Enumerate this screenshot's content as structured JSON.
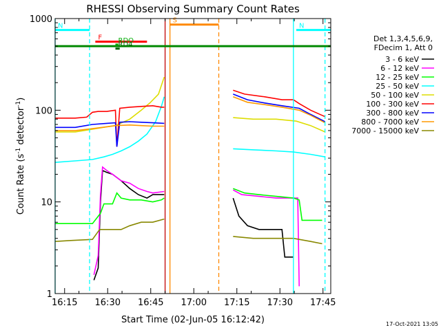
{
  "chart_data": {
    "type": "line",
    "title": "RHESSI Observing Summary Count Rates",
    "xlabel": "Start Time (02-Jun-05 16:12:42)",
    "ylabel_main": "Count Rate (s",
    "ylabel_sup1": "-1",
    "ylabel_mid": " detector",
    "ylabel_sup2": "-1",
    "ylabel_end": ")",
    "y_scale": "log",
    "ylim": [
      1,
      1000
    ],
    "xlim_minutes": [
      -1,
      95
    ],
    "x_ticks": [
      {
        "t": 2.3,
        "label": "16:15"
      },
      {
        "t": 17.3,
        "label": "16:30"
      },
      {
        "t": 32.3,
        "label": "16:45"
      },
      {
        "t": 47.3,
        "label": "17:00"
      },
      {
        "t": 62.3,
        "label": "17:15"
      },
      {
        "t": 77.3,
        "label": "17:30"
      },
      {
        "t": 92.3,
        "label": "17:45"
      }
    ],
    "y_ticks": [
      {
        "v": 1,
        "label": "1"
      },
      {
        "v": 10,
        "label": "10"
      },
      {
        "v": 100,
        "label": "100"
      },
      {
        "v": 1000,
        "label": "1000"
      }
    ],
    "grid": false,
    "legend_position": "right",
    "legend_header": [
      "Det 1,3,4,5,6,9,",
      "FDecim 1, Att 0"
    ],
    "footer_date": "17-Oct-2021 13:05",
    "series": [
      {
        "name": "3 - 6 keV",
        "color": "#000000",
        "points": [
          [
            -1,
            null
          ],
          [
            12,
            null
          ],
          [
            12.5,
            1.4
          ],
          [
            14,
            1.9
          ],
          [
            14.8,
            10
          ],
          [
            15.5,
            22
          ],
          [
            17,
            21
          ],
          [
            19,
            20
          ],
          [
            22,
            17
          ],
          [
            25,
            14
          ],
          [
            28,
            12
          ],
          [
            31,
            11
          ],
          [
            33,
            12
          ],
          [
            37,
            12
          ],
          [
            37.5,
            null
          ],
          [
            60.5,
            null
          ],
          [
            61,
            11
          ],
          [
            63,
            7
          ],
          [
            66,
            5.5
          ],
          [
            70,
            5
          ],
          [
            74,
            5
          ],
          [
            78,
            5
          ],
          [
            79,
            2.5
          ],
          [
            82,
            2.5
          ],
          [
            82.5,
            null
          ],
          [
            95,
            null
          ]
        ]
      },
      {
        "name": "6 - 12 keV",
        "color": "#ff00ff",
        "points": [
          [
            -1,
            null
          ],
          [
            12,
            null
          ],
          [
            12.5,
            1.6
          ],
          [
            14,
            2.6
          ],
          [
            14.8,
            12
          ],
          [
            15.5,
            24
          ],
          [
            17,
            22
          ],
          [
            19,
            20
          ],
          [
            22,
            17
          ],
          [
            25,
            16
          ],
          [
            28,
            14
          ],
          [
            31,
            13
          ],
          [
            33,
            12.5
          ],
          [
            37,
            13
          ],
          [
            37.5,
            null
          ],
          [
            60.5,
            null
          ],
          [
            61,
            13.5
          ],
          [
            64,
            12
          ],
          [
            70,
            11.5
          ],
          [
            76,
            11
          ],
          [
            82,
            11
          ],
          [
            83.5,
            11
          ],
          [
            84,
            1.2
          ],
          [
            84.5,
            null
          ],
          [
            95,
            null
          ]
        ]
      },
      {
        "name": "12 - 25 keV",
        "color": "#00ff00",
        "points": [
          [
            -1,
            null
          ],
          [
            -1,
            5.8
          ],
          [
            5,
            5.8
          ],
          [
            12,
            5.8
          ],
          [
            14.8,
            7.5
          ],
          [
            16,
            9.5
          ],
          [
            19,
            9.5
          ],
          [
            20.5,
            12.5
          ],
          [
            22,
            11
          ],
          [
            25,
            10.5
          ],
          [
            29,
            10.5
          ],
          [
            33,
            10
          ],
          [
            36,
            10.5
          ],
          [
            37,
            11
          ],
          [
            37.5,
            null
          ],
          [
            60.5,
            null
          ],
          [
            61,
            14
          ],
          [
            65,
            12.5
          ],
          [
            70,
            12
          ],
          [
            76,
            11.5
          ],
          [
            82,
            11
          ],
          [
            84,
            10.5
          ],
          [
            85,
            6.3
          ],
          [
            92,
            6.3
          ],
          [
            93,
            null
          ],
          [
            95,
            null
          ]
        ]
      },
      {
        "name": "25 - 50 keV",
        "color": "#00ffff",
        "points": [
          [
            -1,
            null
          ],
          [
            -1,
            27
          ],
          [
            6,
            28
          ],
          [
            12,
            29
          ],
          [
            16,
            31
          ],
          [
            19,
            33
          ],
          [
            22,
            36
          ],
          [
            25,
            40
          ],
          [
            28,
            46
          ],
          [
            31,
            55
          ],
          [
            34,
            75
          ],
          [
            36,
            110
          ],
          [
            37,
            140
          ],
          [
            37.5,
            null
          ],
          [
            60.5,
            null
          ],
          [
            61,
            38
          ],
          [
            68,
            37
          ],
          [
            76,
            36
          ],
          [
            82,
            35
          ],
          [
            88,
            33
          ],
          [
            93,
            31
          ],
          [
            93.5,
            null
          ],
          [
            95,
            null
          ]
        ]
      },
      {
        "name": "50 - 100 keV",
        "color": "#dddd00",
        "points": [
          [
            -1,
            null
          ],
          [
            -1,
            58
          ],
          [
            6,
            58
          ],
          [
            12,
            62
          ],
          [
            17,
            66
          ],
          [
            20,
            68
          ],
          [
            25,
            80
          ],
          [
            29,
            100
          ],
          [
            32,
            120
          ],
          [
            35,
            150
          ],
          [
            37,
            230
          ],
          [
            37.5,
            null
          ],
          [
            60.5,
            null
          ],
          [
            61,
            83
          ],
          [
            68,
            80
          ],
          [
            76,
            80
          ],
          [
            83,
            76
          ],
          [
            88,
            68
          ],
          [
            93,
            58
          ],
          [
            93.5,
            null
          ],
          [
            95,
            null
          ]
        ]
      },
      {
        "name": "100 - 300 keV",
        "color": "#ff0000",
        "points": [
          [
            -1,
            null
          ],
          [
            -1,
            82
          ],
          [
            6,
            82
          ],
          [
            10,
            84
          ],
          [
            12,
            95
          ],
          [
            14,
            97
          ],
          [
            17,
            97
          ],
          [
            20,
            100
          ],
          [
            20.5,
            40
          ],
          [
            21.5,
            105
          ],
          [
            25,
            108
          ],
          [
            29,
            110
          ],
          [
            33,
            112
          ],
          [
            36,
            108
          ],
          [
            37,
            108
          ],
          [
            37.5,
            null
          ],
          [
            60.5,
            null
          ],
          [
            61,
            165
          ],
          [
            65,
            150
          ],
          [
            72,
            140
          ],
          [
            78,
            130
          ],
          [
            82,
            130
          ],
          [
            84,
            118
          ],
          [
            88,
            100
          ],
          [
            93,
            85
          ],
          [
            93.5,
            null
          ],
          [
            95,
            null
          ]
        ]
      },
      {
        "name": "300 - 800 keV",
        "color": "#0000ff",
        "points": [
          [
            -1,
            null
          ],
          [
            -1,
            65
          ],
          [
            6,
            65
          ],
          [
            12,
            70
          ],
          [
            17,
            72
          ],
          [
            20,
            73
          ],
          [
            20.5,
            40
          ],
          [
            21.5,
            74
          ],
          [
            25,
            75
          ],
          [
            29,
            74
          ],
          [
            33,
            73
          ],
          [
            37,
            72
          ],
          [
            37.5,
            null
          ],
          [
            60.5,
            null
          ],
          [
            61,
            150
          ],
          [
            66,
            130
          ],
          [
            72,
            120
          ],
          [
            78,
            112
          ],
          [
            84,
            105
          ],
          [
            88,
            90
          ],
          [
            93,
            75
          ],
          [
            93.5,
            null
          ],
          [
            95,
            null
          ]
        ]
      },
      {
        "name": "800 - 7000 keV",
        "color": "#ff9900",
        "points": [
          [
            -1,
            null
          ],
          [
            -1,
            60
          ],
          [
            6,
            60
          ],
          [
            12,
            63
          ],
          [
            17,
            66
          ],
          [
            20,
            68
          ],
          [
            25,
            69
          ],
          [
            29,
            68
          ],
          [
            33,
            67
          ],
          [
            37,
            67
          ],
          [
            37.5,
            null
          ],
          [
            60.5,
            null
          ],
          [
            61,
            140
          ],
          [
            66,
            122
          ],
          [
            72,
            115
          ],
          [
            78,
            108
          ],
          [
            84,
            100
          ],
          [
            88,
            88
          ],
          [
            93,
            73
          ],
          [
            93.5,
            null
          ],
          [
            95,
            null
          ]
        ]
      },
      {
        "name": "7000 - 15000 keV",
        "color": "#888800",
        "points": [
          [
            -1,
            null
          ],
          [
            -1,
            3.7
          ],
          [
            5,
            3.8
          ],
          [
            12,
            3.9
          ],
          [
            14.5,
            5
          ],
          [
            19,
            5
          ],
          [
            22,
            5
          ],
          [
            25,
            5.5
          ],
          [
            29,
            6
          ],
          [
            33,
            6
          ],
          [
            37,
            6.5
          ],
          [
            37.5,
            null
          ],
          [
            60.5,
            null
          ],
          [
            61,
            4.2
          ],
          [
            68,
            4
          ],
          [
            76,
            4
          ],
          [
            82,
            4
          ],
          [
            88,
            3.7
          ],
          [
            92,
            3.5
          ],
          [
            93,
            null
          ],
          [
            95,
            null
          ]
        ]
      }
    ],
    "flags": [
      {
        "label": "N",
        "color": "#00ffff",
        "t_start": -1,
        "t_end": 11,
        "v": 750
      },
      {
        "label": "N",
        "color": "#00ffff",
        "t_start": 83,
        "t_end": 95,
        "v": 750
      },
      {
        "label": "F",
        "color": "#ff0000",
        "t_start": 13,
        "t_end": 31,
        "v": 560
      },
      {
        "label": "S",
        "color": "#ff8800",
        "t_start": 39,
        "t_end": 56,
        "v": 860
      },
      {
        "label": "RDO",
        "color": "#00aa00",
        "t_start": 20,
        "t_end": 21,
        "v": 520
      },
      {
        "label": "RD4",
        "color": "#006600",
        "t_start": 20,
        "t_end": 21.5,
        "v": 470
      }
    ],
    "flag_line": {
      "color": "#008800",
      "v": 500
    },
    "vlines": [
      {
        "t": -1,
        "color": "#00ffff",
        "dash": false
      },
      {
        "t": 11,
        "color": "#00ffff",
        "dash": true
      },
      {
        "t": 37.3,
        "color": "#c00000",
        "dash": false
      },
      {
        "t": 39,
        "color": "#ff8800",
        "dash": false
      },
      {
        "t": 56,
        "color": "#ff8800",
        "dash": true
      },
      {
        "t": 82,
        "color": "#00ffff",
        "dash": false
      },
      {
        "t": 93,
        "color": "#00ffff",
        "dash": true
      }
    ]
  }
}
